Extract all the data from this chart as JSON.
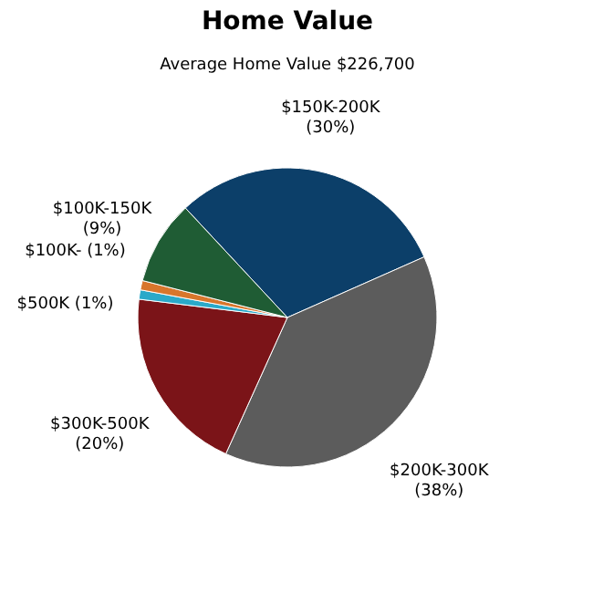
{
  "chart_data": {
    "type": "pie",
    "title": "Home Value",
    "subtitle": "Average Home Value  $226,700",
    "categories": [
      "$150K-200K",
      "$200K-300K",
      "$300K-500K",
      "$500K",
      "$100K-",
      "$100K-150K"
    ],
    "values": [
      30,
      38,
      20,
      1,
      1,
      9
    ],
    "value_labels": [
      "(30%)",
      "(38%)",
      "(20%)",
      "(1%)",
      "(1%)",
      "(9%)"
    ],
    "colors": [
      "#0c3f69",
      "#5c5c5c",
      "#7b1418",
      "#2aa9c9",
      "#d8762c",
      "#1f5c34"
    ],
    "legend": false
  }
}
